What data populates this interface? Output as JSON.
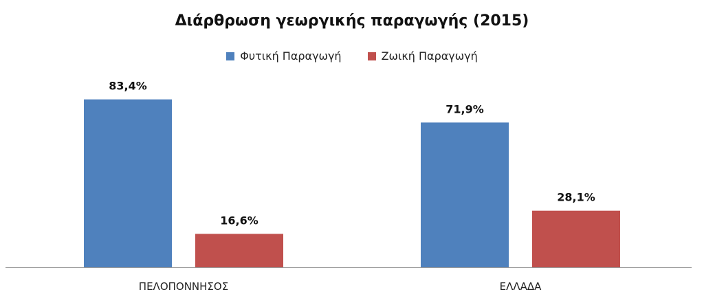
{
  "chart_data": {
    "type": "bar",
    "title": "Διάρθρωση γεωργικής παραγωγής (2015)",
    "categories": [
      "ΠΕΛΟΠΟΝΝΗΣΟΣ",
      "ΕΛΛΑΔΑ"
    ],
    "series": [
      {
        "name": "Φυτική Παραγωγή",
        "values": [
          83.4,
          71.9
        ],
        "labels": [
          "83,4%",
          "71,9%"
        ],
        "color": "#4F81BD"
      },
      {
        "name": "Ζωική Παραγωγή",
        "values": [
          16.6,
          28.1
        ],
        "labels": [
          "16,6%",
          "28,1%"
        ],
        "color": "#C0504D"
      }
    ],
    "xlabel": "",
    "ylabel": "",
    "ylim": [
      0,
      100
    ],
    "grid": false,
    "legend_position": "top"
  }
}
